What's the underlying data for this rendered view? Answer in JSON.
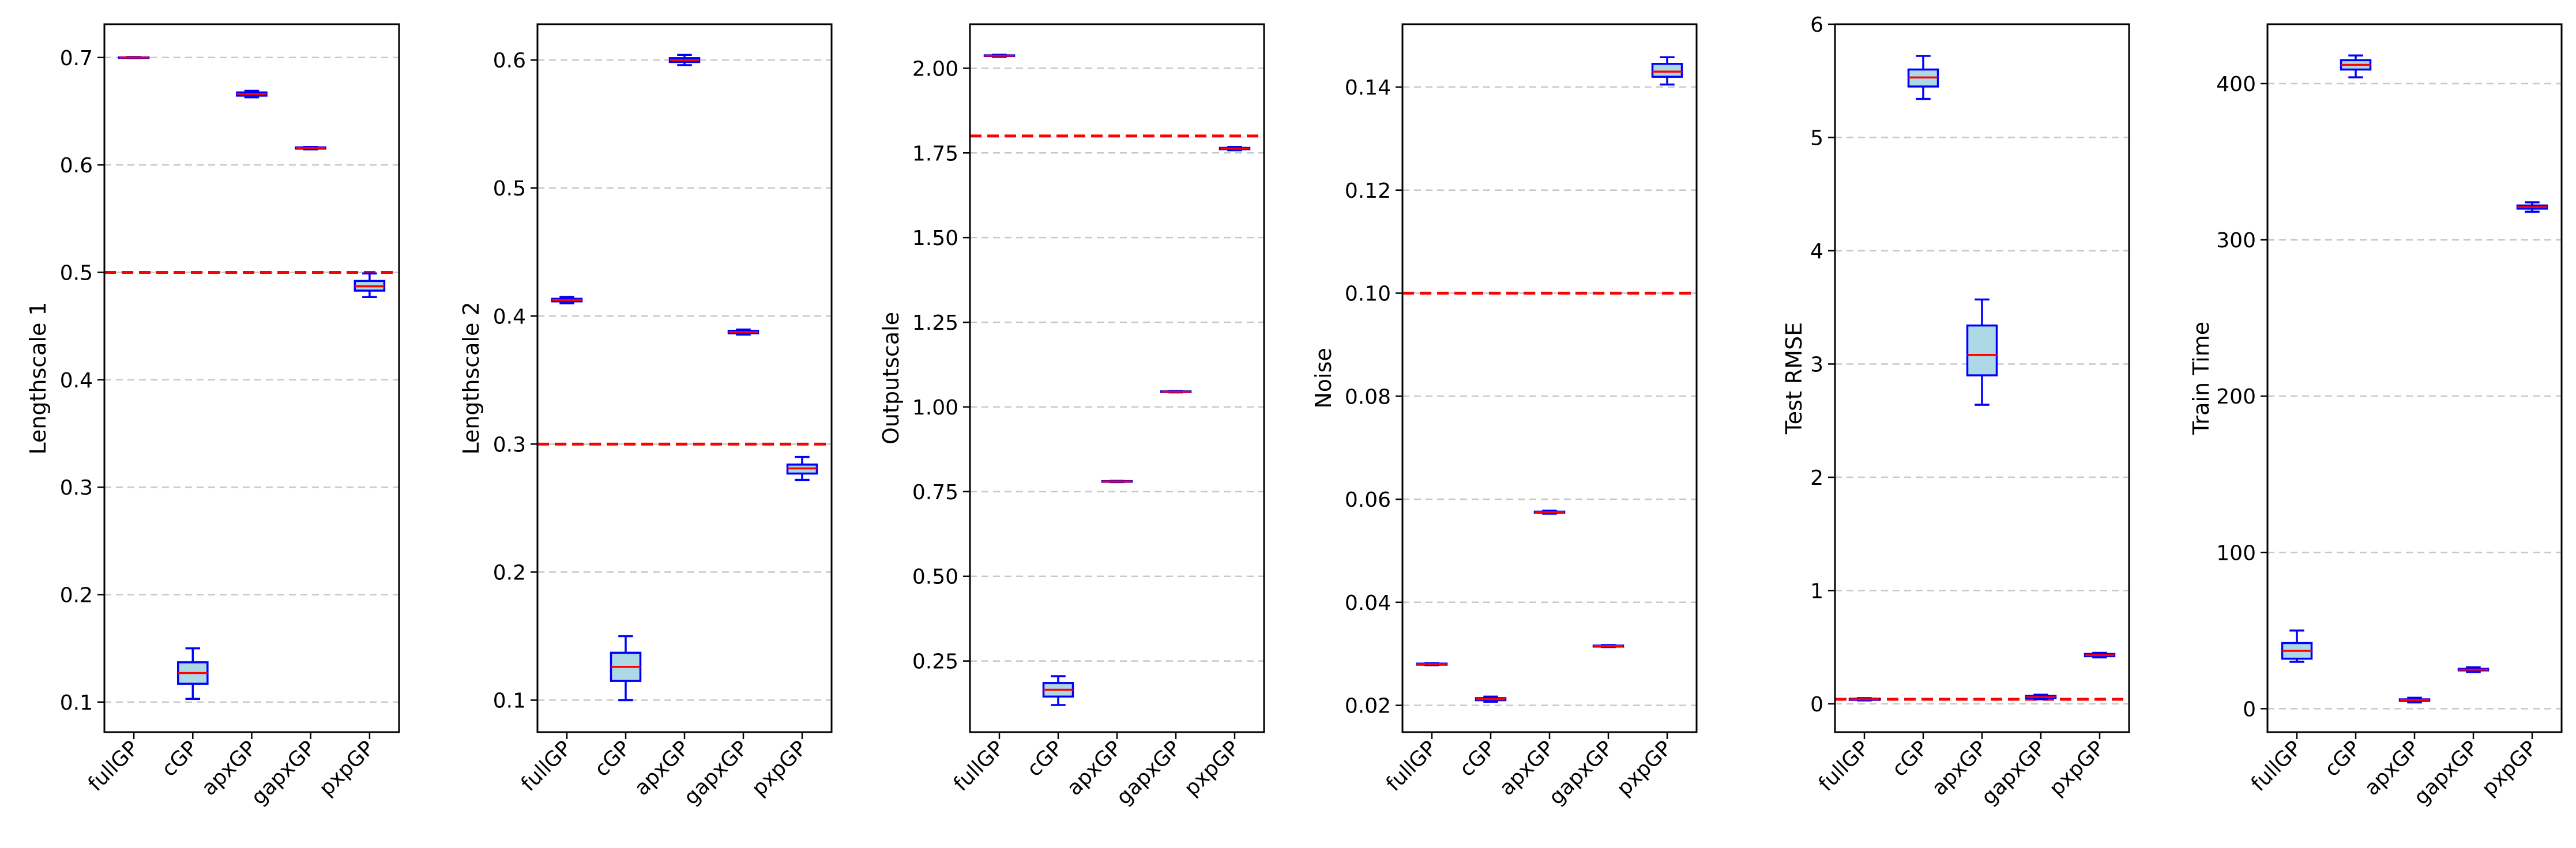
{
  "style": {
    "box_fill": "#add8e6",
    "box_edge": "#0000ff",
    "median_color": "#ff0000",
    "reference_line_color": "#ff0000",
    "grid_color": "#c8c8c8"
  },
  "chart_data": [
    {
      "type": "box",
      "ylabel": "Lengthscale 1",
      "categories": [
        "fullGP",
        "cGP",
        "apxGP",
        "gapxGP",
        "pxpGP"
      ],
      "ylim": [
        0.072,
        0.731
      ],
      "yticks": [
        0.1,
        0.2,
        0.3,
        0.4,
        0.5,
        0.6,
        0.7
      ],
      "ytick_labels": [
        "0.1",
        "0.2",
        "0.3",
        "0.4",
        "0.5",
        "0.6",
        "0.7"
      ],
      "reference_line": 0.5,
      "grid": "y",
      "boxes": [
        {
          "category": "fullGP",
          "whislo": 0.6995,
          "q1": 0.6998,
          "med": 0.7,
          "q3": 0.7002,
          "whishi": 0.7005
        },
        {
          "category": "cGP",
          "whislo": 0.103,
          "q1": 0.117,
          "med": 0.127,
          "q3": 0.137,
          "whishi": 0.15
        },
        {
          "category": "apxGP",
          "whislo": 0.663,
          "q1": 0.6645,
          "med": 0.666,
          "q3": 0.6675,
          "whishi": 0.669
        },
        {
          "category": "gapxGP",
          "whislo": 0.6145,
          "q1": 0.6152,
          "med": 0.6158,
          "q3": 0.6163,
          "whishi": 0.6168
        },
        {
          "category": "pxpGP",
          "whislo": 0.477,
          "q1": 0.483,
          "med": 0.487,
          "q3": 0.492,
          "whishi": 0.499
        }
      ]
    },
    {
      "type": "box",
      "ylabel": "Lengthscale 2",
      "categories": [
        "fullGP",
        "cGP",
        "apxGP",
        "gapxGP",
        "pxpGP"
      ],
      "ylim": [
        0.075,
        0.628
      ],
      "yticks": [
        0.1,
        0.2,
        0.3,
        0.4,
        0.5,
        0.6
      ],
      "ytick_labels": [
        "0.1",
        "0.2",
        "0.3",
        "0.4",
        "0.5",
        "0.6"
      ],
      "reference_line": 0.3,
      "grid": "y",
      "boxes": [
        {
          "category": "fullGP",
          "whislo": 0.41,
          "q1": 0.4115,
          "med": 0.4125,
          "q3": 0.4135,
          "whishi": 0.415
        },
        {
          "category": "cGP",
          "whislo": 0.1,
          "q1": 0.115,
          "med": 0.126,
          "q3": 0.137,
          "whishi": 0.15
        },
        {
          "category": "apxGP",
          "whislo": 0.596,
          "q1": 0.5985,
          "med": 0.6,
          "q3": 0.6015,
          "whishi": 0.604
        },
        {
          "category": "gapxGP",
          "whislo": 0.3855,
          "q1": 0.3865,
          "med": 0.3875,
          "q3": 0.3885,
          "whishi": 0.3895
        },
        {
          "category": "pxpGP",
          "whislo": 0.272,
          "q1": 0.277,
          "med": 0.281,
          "q3": 0.284,
          "whishi": 0.29
        }
      ]
    },
    {
      "type": "box",
      "ylabel": "Outputscale",
      "categories": [
        "fullGP",
        "cGP",
        "apxGP",
        "gapxGP",
        "pxpGP"
      ],
      "ylim": [
        0.04,
        2.13
      ],
      "yticks": [
        0.25,
        0.5,
        0.75,
        1.0,
        1.25,
        1.5,
        1.75,
        2.0
      ],
      "ytick_labels": [
        "0.25",
        "0.50",
        "0.75",
        "1.00",
        "1.25",
        "1.50",
        "1.75",
        "2.00"
      ],
      "reference_line": 1.8,
      "grid": "y",
      "boxes": [
        {
          "category": "fullGP",
          "whislo": 2.034,
          "q1": 2.036,
          "med": 2.037,
          "q3": 2.038,
          "whishi": 2.04
        },
        {
          "category": "cGP",
          "whislo": 0.12,
          "q1": 0.145,
          "med": 0.165,
          "q3": 0.185,
          "whishi": 0.205
        },
        {
          "category": "apxGP",
          "whislo": 0.778,
          "q1": 0.779,
          "med": 0.78,
          "q3": 0.781,
          "whishi": 0.782
        },
        {
          "category": "gapxGP",
          "whislo": 1.043,
          "q1": 1.044,
          "med": 1.045,
          "q3": 1.046,
          "whishi": 1.047
        },
        {
          "category": "pxpGP",
          "whislo": 1.758,
          "q1": 1.761,
          "med": 1.763,
          "q3": 1.765,
          "whishi": 1.768
        }
      ]
    },
    {
      "type": "box",
      "ylabel": "Noise",
      "categories": [
        "fullGP",
        "cGP",
        "apxGP",
        "gapxGP",
        "pxpGP"
      ],
      "ylim": [
        0.0148,
        0.1522
      ],
      "yticks": [
        0.02,
        0.04,
        0.06,
        0.08,
        0.1,
        0.12,
        0.14
      ],
      "ytick_labels": [
        "0.02",
        "0.04",
        "0.06",
        "0.08",
        "0.10",
        "0.12",
        "0.14"
      ],
      "reference_line": 0.1,
      "grid": "y",
      "boxes": [
        {
          "category": "fullGP",
          "whislo": 0.0278,
          "q1": 0.0279,
          "med": 0.028,
          "q3": 0.0281,
          "whishi": 0.0282
        },
        {
          "category": "cGP",
          "whislo": 0.0207,
          "q1": 0.021,
          "med": 0.0212,
          "q3": 0.0214,
          "whishi": 0.0217
        },
        {
          "category": "apxGP",
          "whislo": 0.0572,
          "q1": 0.0574,
          "med": 0.0575,
          "q3": 0.0576,
          "whishi": 0.0578
        },
        {
          "category": "gapxGP",
          "whislo": 0.0313,
          "q1": 0.0314,
          "med": 0.0315,
          "q3": 0.0316,
          "whishi": 0.0317
        },
        {
          "category": "pxpGP",
          "whislo": 0.1405,
          "q1": 0.142,
          "med": 0.143,
          "q3": 0.1445,
          "whishi": 0.1458
        }
      ]
    },
    {
      "type": "box",
      "ylabel": "Test RMSE",
      "categories": [
        "fullGP",
        "cGP",
        "apxGP",
        "gapxGP",
        "pxpGP"
      ],
      "ylim": [
        -0.25,
        6.0
      ],
      "yticks": [
        0,
        1,
        2,
        3,
        4,
        5,
        6
      ],
      "ytick_labels": [
        "0",
        "1",
        "2",
        "3",
        "4",
        "5",
        "6"
      ],
      "reference_line": 0.04,
      "grid": "y",
      "boxes": [
        {
          "category": "fullGP",
          "whislo": 0.03,
          "q1": 0.035,
          "med": 0.04,
          "q3": 0.045,
          "whishi": 0.05
        },
        {
          "category": "cGP",
          "whislo": 5.34,
          "q1": 5.45,
          "med": 5.53,
          "q3": 5.6,
          "whishi": 5.72
        },
        {
          "category": "apxGP",
          "whislo": 2.64,
          "q1": 2.9,
          "med": 3.08,
          "q3": 3.34,
          "whishi": 3.57
        },
        {
          "category": "gapxGP",
          "whislo": 0.04,
          "q1": 0.05,
          "med": 0.06,
          "q3": 0.07,
          "whishi": 0.08
        },
        {
          "category": "pxpGP",
          "whislo": 0.41,
          "q1": 0.42,
          "med": 0.43,
          "q3": 0.44,
          "whishi": 0.45
        }
      ]
    },
    {
      "type": "box",
      "ylabel": "Train Time",
      "categories": [
        "fullGP",
        "cGP",
        "apxGP",
        "gapxGP",
        "pxpGP"
      ],
      "ylim": [
        -15,
        438
      ],
      "yticks": [
        0,
        100,
        200,
        300,
        400
      ],
      "ytick_labels": [
        "0",
        "100",
        "200",
        "300",
        "400"
      ],
      "reference_line": null,
      "grid": "y",
      "boxes": [
        {
          "category": "fullGP",
          "whislo": 30,
          "q1": 32,
          "med": 37,
          "q3": 42,
          "whishi": 50
        },
        {
          "category": "cGP",
          "whislo": 404,
          "q1": 409,
          "med": 412,
          "q3": 415,
          "whishi": 418
        },
        {
          "category": "apxGP",
          "whislo": 4,
          "q1": 5,
          "med": 5.5,
          "q3": 6,
          "whishi": 7
        },
        {
          "category": "gapxGP",
          "whislo": 23.5,
          "q1": 24.5,
          "med": 25,
          "q3": 25.5,
          "whishi": 26.5
        },
        {
          "category": "pxpGP",
          "whislo": 318,
          "q1": 320,
          "med": 321,
          "q3": 322,
          "whishi": 324
        }
      ]
    }
  ]
}
